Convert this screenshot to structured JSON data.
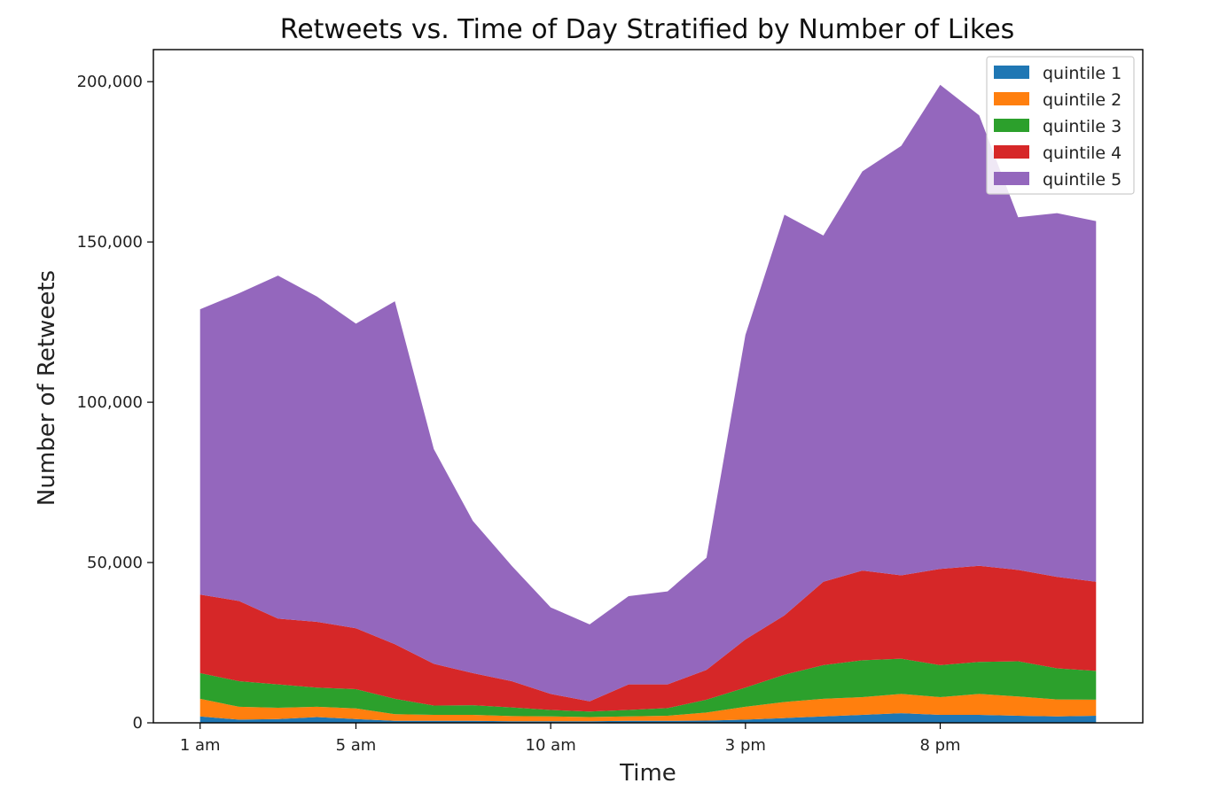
{
  "chart_data": {
    "type": "area",
    "stacked": true,
    "title": "Retweets vs. Time of Day Stratified by Number of Likes",
    "xlabel": "Time",
    "ylabel": "Number of Retweets",
    "x": [
      1,
      2,
      3,
      4,
      5,
      6,
      7,
      8,
      9,
      10,
      11,
      12,
      13,
      14,
      15,
      16,
      17,
      18,
      19,
      20,
      21,
      22,
      23,
      24
    ],
    "xlim": [
      -0.2,
      25.2
    ],
    "ylim": [
      0,
      210000
    ],
    "xticks": [
      {
        "value": 1,
        "label": "1 am"
      },
      {
        "value": 5,
        "label": "5 am"
      },
      {
        "value": 10,
        "label": "10 am"
      },
      {
        "value": 15,
        "label": "3 pm"
      },
      {
        "value": 20,
        "label": "8 pm"
      }
    ],
    "yticks": [
      {
        "value": 0,
        "label": "0"
      },
      {
        "value": 50000,
        "label": "50,000"
      },
      {
        "value": 100000,
        "label": "100,000"
      },
      {
        "value": 150000,
        "label": "150,000"
      },
      {
        "value": 200000,
        "label": "200,000"
      }
    ],
    "legend_position": "top-right",
    "grid": false,
    "series": [
      {
        "name": "quintile 1",
        "color": "#1f77b4",
        "values": [
          2000,
          1000,
          1200,
          1800,
          1200,
          600,
          600,
          600,
          500,
          500,
          500,
          600,
          600,
          700,
          1000,
          1500,
          2000,
          2500,
          3000,
          2500,
          2500,
          2200,
          2000,
          2200
        ]
      },
      {
        "name": "quintile 2",
        "color": "#ff7f0e",
        "values": [
          5500,
          4000,
          3500,
          3200,
          3300,
          2100,
          1900,
          1900,
          1600,
          1500,
          1300,
          1400,
          1600,
          2500,
          4000,
          5000,
          5500,
          5500,
          6000,
          5500,
          6500,
          6000,
          5300,
          5000
        ]
      },
      {
        "name": "quintile 3",
        "color": "#2ca02c",
        "values": [
          8000,
          8000,
          7300,
          6000,
          6000,
          4800,
          2900,
          3000,
          2700,
          2000,
          1700,
          2000,
          2400,
          4000,
          6000,
          8500,
          10500,
          11500,
          11000,
          10000,
          10000,
          11000,
          9700,
          9000
        ]
      },
      {
        "name": "quintile 4",
        "color": "#d62728",
        "values": [
          24500,
          25000,
          20500,
          20500,
          19000,
          17000,
          13000,
          10000,
          8200,
          5000,
          3200,
          8000,
          7400,
          9300,
          15000,
          18500,
          26000,
          28000,
          26000,
          30000,
          30000,
          28500,
          28500,
          27800
        ]
      },
      {
        "name": "quintile 5",
        "color": "#9467bd",
        "values": [
          89000,
          96000,
          107000,
          101500,
          95000,
          107000,
          67000,
          47500,
          36000,
          27000,
          24000,
          27500,
          29000,
          35000,
          95000,
          125000,
          108000,
          124500,
          134000,
          151000,
          140500,
          110000,
          113500,
          112500
        ]
      }
    ]
  }
}
